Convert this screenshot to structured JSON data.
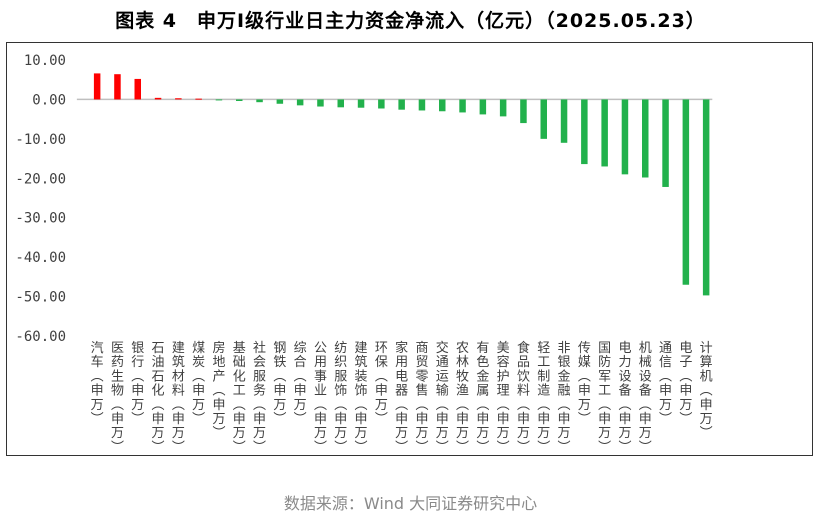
{
  "page_title": "图表 4　申万Ⅰ级行业日主力资金净流入（亿元）（2025.05.23）",
  "source_text": "数据来源：Wind 大同证券研究中心",
  "colors": {
    "positive": "#ff0000",
    "negative": "#22b14c",
    "axis": "#bfbfbf",
    "text": "#404040"
  },
  "chart_data": {
    "type": "bar",
    "title": "",
    "xlabel": "",
    "ylabel": "",
    "ylim": [
      -60,
      10
    ],
    "yticks": [
      10,
      0,
      -10,
      -20,
      -30,
      -40,
      -50,
      -60
    ],
    "ytick_labels": [
      "10.00",
      "0.00",
      "-10.00",
      "-20.00",
      "-30.00",
      "-40.00",
      "-50.00",
      "-60.00"
    ],
    "grid": false,
    "legend": "none",
    "categories": [
      "汽车(申万)",
      "医药生物(申万)",
      "银行(申万)",
      "石油石化(申万)",
      "建筑材料(申万)",
      "煤炭(申万)",
      "房地产(申万)",
      "基础化工(申万)",
      "社会服务(申万)",
      "钢铁(申万)",
      "综合(申万)",
      "公用事业(申万)",
      "纺织服饰(申万)",
      "建筑装饰(申万)",
      "环保(申万)",
      "家用电器(申万)",
      "商贸零售(申万)",
      "交通运输(申万)",
      "农林牧渔(申万)",
      "有色金属(申万)",
      "美容护理(申万)",
      "食品饮料(申万)",
      "轻工制造(申万)",
      "非银金融(申万)",
      "传媒(申万)",
      "国防军工(申万)",
      "电力设备(申万)",
      "机械设备(申万)",
      "通信(申万)",
      "电子(申万)",
      "计算机(申万)"
    ],
    "values": [
      6.6,
      6.4,
      5.2,
      0.4,
      0.3,
      0.2,
      -0.1,
      -0.4,
      -0.7,
      -1.1,
      -1.5,
      -1.8,
      -2.0,
      -2.1,
      -2.3,
      -2.6,
      -2.8,
      -3.0,
      -3.3,
      -3.8,
      -4.3,
      -6.0,
      -10.0,
      -11.0,
      -16.4,
      -17.0,
      -19.0,
      -19.8,
      -22.2,
      -47.0,
      -49.7
    ]
  }
}
